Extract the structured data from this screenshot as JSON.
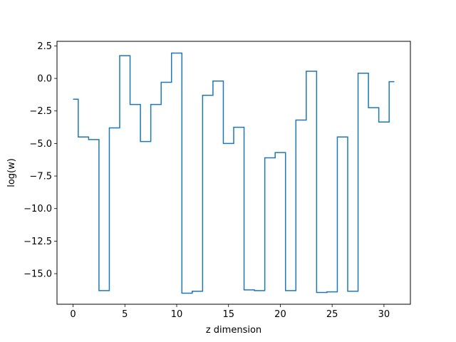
{
  "chart_data": {
    "type": "line",
    "drawstyle": "steps-mid",
    "title": "",
    "xlabel": "z dimension",
    "ylabel": "log(w)",
    "xlim": [
      -1.55,
      32.55
    ],
    "ylim": [
      -17.35,
      2.85
    ],
    "xticks": [
      0,
      5,
      10,
      15,
      20,
      25,
      30
    ],
    "xtick_labels": [
      "0",
      "5",
      "10",
      "15",
      "20",
      "25",
      "30"
    ],
    "yticks": [
      2.5,
      0.0,
      -2.5,
      -5.0,
      -7.5,
      -10.0,
      -12.5,
      -15.0
    ],
    "ytick_labels": [
      "2.5",
      "0.0",
      "−2.5",
      "−5.0",
      "−7.5",
      "−10.0",
      "−12.5",
      "−15.0"
    ],
    "grid": false,
    "line_color": "#1f77b4",
    "series": [
      {
        "x": [
          0,
          1,
          2,
          3,
          4,
          5,
          6,
          7,
          8,
          9,
          10,
          11,
          12,
          13,
          14,
          15,
          16,
          17,
          18,
          19,
          20,
          21,
          22,
          23,
          24,
          25,
          26,
          27,
          28,
          29,
          30,
          31
        ],
        "values": [
          -1.6,
          -4.5,
          -4.7,
          -16.3,
          -3.8,
          1.75,
          -2.0,
          -4.85,
          -2.0,
          -0.3,
          1.95,
          -16.5,
          -16.35,
          -1.3,
          -0.2,
          -5.0,
          -3.75,
          -16.25,
          -16.3,
          -6.1,
          -5.7,
          -16.3,
          -3.2,
          0.55,
          -16.45,
          -16.4,
          -4.5,
          -16.35,
          0.4,
          -2.25,
          -3.35,
          -0.25
        ]
      }
    ]
  }
}
